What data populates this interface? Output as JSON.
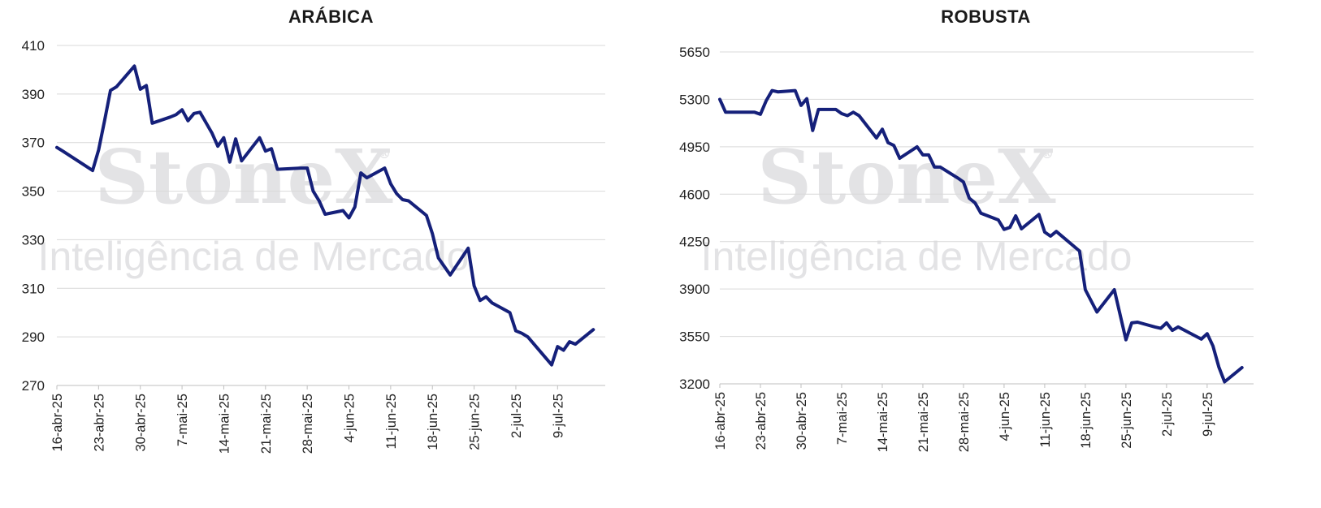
{
  "watermark": {
    "brand": "StoneX",
    "registered": "®",
    "subtitle": "Inteligência de Mercado"
  },
  "chart_data": [
    {
      "type": "line",
      "title": "ARÁBICA",
      "color": "#15207a",
      "ylim": [
        270,
        410
      ],
      "yticks": [
        "410",
        "390",
        "370",
        "350",
        "330",
        "310",
        "290",
        "270"
      ],
      "xticks": [
        "16-abr-25",
        "23-abr-25",
        "30-abr-25",
        "7-mai-25",
        "14-mai-25",
        "21-mai-25",
        "28-mai-25",
        "4-jun-25",
        "11-jun-25",
        "18-jun-25",
        "25-jun-25",
        "2-jul-25",
        "9-jul-25"
      ],
      "grid": true,
      "series": [
        {
          "values": [
            [
              "2025-04-16",
              368
            ],
            [
              "2025-04-17",
              366.5
            ],
            [
              "2025-04-22",
              358.5
            ],
            [
              "2025-04-23",
              367
            ],
            [
              "2025-04-24",
              379
            ],
            [
              "2025-04-25",
              391.5
            ],
            [
              "2025-04-26",
              393
            ],
            [
              "2025-04-29",
              401.5
            ],
            [
              "2025-04-30",
              392
            ],
            [
              "2025-05-01",
              393.5
            ],
            [
              "2025-05-02",
              378
            ],
            [
              "2025-05-05",
              380.5
            ],
            [
              "2025-05-06",
              381.5
            ],
            [
              "2025-05-07",
              383.5
            ],
            [
              "2025-05-08",
              379
            ],
            [
              "2025-05-09",
              382
            ],
            [
              "2025-05-10",
              382.5
            ],
            [
              "2025-05-12",
              374
            ],
            [
              "2025-05-13",
              368.5
            ],
            [
              "2025-05-14",
              372
            ],
            [
              "2025-05-15",
              362
            ],
            [
              "2025-05-16",
              371.5
            ],
            [
              "2025-05-17",
              362.5
            ],
            [
              "2025-05-20",
              372
            ],
            [
              "2025-05-21",
              366.5
            ],
            [
              "2025-05-22",
              367.5
            ],
            [
              "2025-05-23",
              359
            ],
            [
              "2025-05-27",
              359.5
            ],
            [
              "2025-05-28",
              359.5
            ],
            [
              "2025-05-29",
              350
            ],
            [
              "2025-05-30",
              346
            ],
            [
              "2025-05-31",
              340.5
            ],
            [
              "2025-06-03",
              342
            ],
            [
              "2025-06-04",
              339
            ],
            [
              "2025-06-05",
              343.5
            ],
            [
              "2025-06-06",
              357.5
            ],
            [
              "2025-06-07",
              355.5
            ],
            [
              "2025-06-10",
              359.5
            ],
            [
              "2025-06-11",
              353
            ],
            [
              "2025-06-12",
              349
            ],
            [
              "2025-06-13",
              346.5
            ],
            [
              "2025-06-14",
              346
            ],
            [
              "2025-06-17",
              340
            ],
            [
              "2025-06-18",
              332.5
            ],
            [
              "2025-06-19",
              322.5
            ],
            [
              "2025-06-21",
              315.5
            ],
            [
              "2025-06-24",
              326.5
            ],
            [
              "2025-06-25",
              311
            ],
            [
              "2025-06-26",
              305
            ],
            [
              "2025-06-27",
              306.5
            ],
            [
              "2025-06-28",
              304
            ],
            [
              "2025-07-01",
              300
            ],
            [
              "2025-07-02",
              292.5
            ],
            [
              "2025-07-03",
              291.5
            ],
            [
              "2025-07-04",
              290
            ],
            [
              "2025-07-08",
              278.5
            ],
            [
              "2025-07-09",
              286
            ],
            [
              "2025-07-10",
              284.5
            ],
            [
              "2025-07-11",
              288
            ],
            [
              "2025-07-12",
              287
            ],
            [
              "2025-07-15",
              293
            ]
          ]
        }
      ]
    },
    {
      "type": "line",
      "title": "ROBUSTA",
      "color": "#15207a",
      "ylim": [
        3200,
        5650
      ],
      "yticks": [
        "5650",
        "5300",
        "4950",
        "4600",
        "4250",
        "3900",
        "3550",
        "3200"
      ],
      "xticks": [
        "16-abr-25",
        "23-abr-25",
        "30-abr-25",
        "7-mai-25",
        "14-mai-25",
        "21-mai-25",
        "28-mai-25",
        "4-jun-25",
        "11-jun-25",
        "18-jun-25",
        "25-jun-25",
        "2-jul-25",
        "9-jul-25"
      ],
      "grid": true,
      "series": [
        {
          "values": [
            [
              "2025-04-16",
              5300
            ],
            [
              "2025-04-17",
              5205
            ],
            [
              "2025-04-22",
              5205
            ],
            [
              "2025-04-23",
              5190
            ],
            [
              "2025-04-24",
              5290
            ],
            [
              "2025-04-25",
              5365
            ],
            [
              "2025-04-26",
              5355
            ],
            [
              "2025-04-29",
              5365
            ],
            [
              "2025-04-30",
              5255
            ],
            [
              "2025-05-01",
              5305
            ],
            [
              "2025-05-02",
              5070
            ],
            [
              "2025-05-03",
              5225
            ],
            [
              "2025-05-06",
              5225
            ],
            [
              "2025-05-07",
              5195
            ],
            [
              "2025-05-08",
              5180
            ],
            [
              "2025-05-09",
              5205
            ],
            [
              "2025-05-10",
              5180
            ],
            [
              "2025-05-13",
              5015
            ],
            [
              "2025-05-14",
              5080
            ],
            [
              "2025-05-15",
              4980
            ],
            [
              "2025-05-16",
              4960
            ],
            [
              "2025-05-17",
              4865
            ],
            [
              "2025-05-20",
              4950
            ],
            [
              "2025-05-21",
              4890
            ],
            [
              "2025-05-22",
              4890
            ],
            [
              "2025-05-23",
              4800
            ],
            [
              "2025-05-24",
              4800
            ],
            [
              "2025-05-27",
              4720
            ],
            [
              "2025-05-28",
              4690
            ],
            [
              "2025-05-29",
              4570
            ],
            [
              "2025-05-30",
              4535
            ],
            [
              "2025-05-31",
              4460
            ],
            [
              "2025-06-03",
              4410
            ],
            [
              "2025-06-04",
              4340
            ],
            [
              "2025-06-05",
              4355
            ],
            [
              "2025-06-06",
              4440
            ],
            [
              "2025-06-07",
              4345
            ],
            [
              "2025-06-10",
              4450
            ],
            [
              "2025-06-11",
              4320
            ],
            [
              "2025-06-12",
              4290
            ],
            [
              "2025-06-13",
              4325
            ],
            [
              "2025-06-17",
              4180
            ],
            [
              "2025-06-18",
              3895
            ],
            [
              "2025-06-20",
              3730
            ],
            [
              "2025-06-23",
              3895
            ],
            [
              "2025-06-25",
              3525
            ],
            [
              "2025-06-26",
              3650
            ],
            [
              "2025-06-27",
              3655
            ],
            [
              "2025-06-30",
              3620
            ],
            [
              "2025-07-01",
              3610
            ],
            [
              "2025-07-02",
              3650
            ],
            [
              "2025-07-03",
              3595
            ],
            [
              "2025-07-04",
              3620
            ],
            [
              "2025-07-08",
              3530
            ],
            [
              "2025-07-09",
              3570
            ],
            [
              "2025-07-10",
              3480
            ],
            [
              "2025-07-11",
              3325
            ],
            [
              "2025-07-12",
              3215
            ],
            [
              "2025-07-15",
              3320
            ]
          ]
        }
      ]
    }
  ]
}
